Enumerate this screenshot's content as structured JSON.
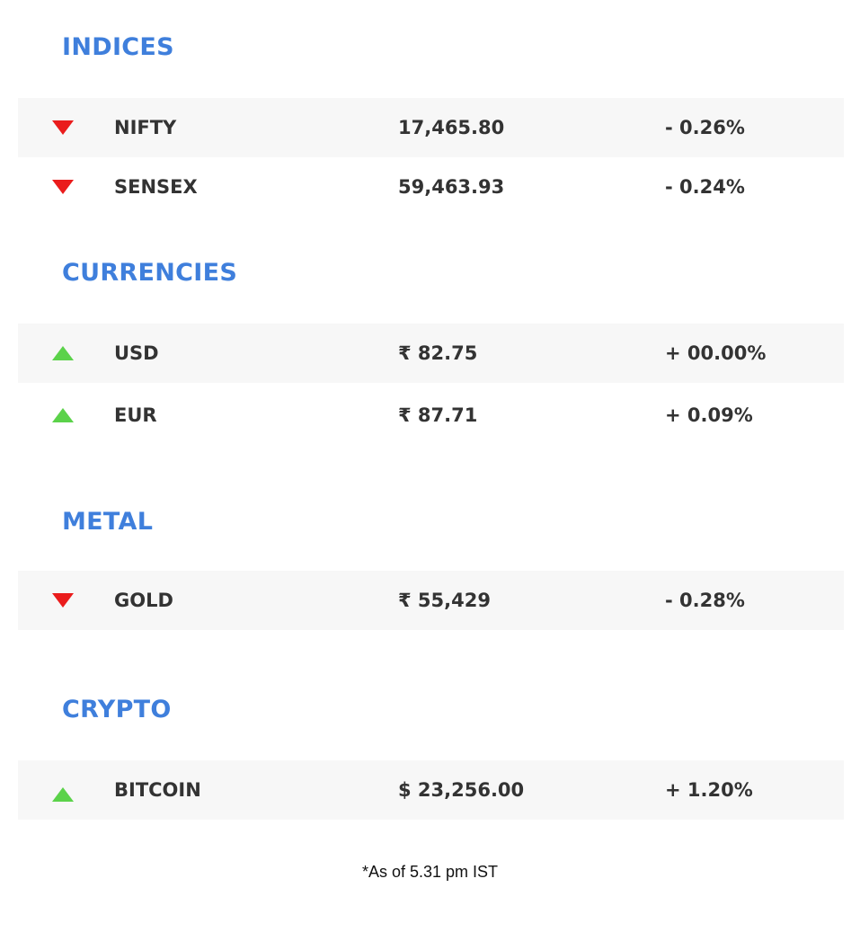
{
  "sections": {
    "indices": {
      "title": "INDICES",
      "rows": [
        {
          "name": "NIFTY",
          "value": "17,465.80",
          "change": "- 0.26%",
          "direction": "down"
        },
        {
          "name": "SENSEX",
          "value": "59,463.93",
          "change": "- 0.24%",
          "direction": "down"
        }
      ]
    },
    "currencies": {
      "title": "CURRENCIES",
      "rows": [
        {
          "name": "USD",
          "value": "₹ 82.75",
          "change": "+ 00.00%",
          "direction": "up"
        },
        {
          "name": "EUR",
          "value": "₹ 87.71",
          "change": "+ 0.09%",
          "direction": "up"
        }
      ]
    },
    "metal": {
      "title": "METAL",
      "rows": [
        {
          "name": "GOLD",
          "value": "₹ 55,429",
          "change": "- 0.28%",
          "direction": "down"
        }
      ]
    },
    "crypto": {
      "title": "CRYPTO",
      "rows": [
        {
          "name": "BITCOIN",
          "value": "$ 23,256.00",
          "change": "+ 1.20%",
          "direction": "up"
        }
      ]
    }
  },
  "icons": {
    "down": "triangle-down-icon",
    "up": "triangle-up-icon"
  },
  "colors": {
    "section_title": "#3f7fdc",
    "down_arrow": "#ea1c1c",
    "up_arrow": "#5bd24a",
    "row_shade": "#f7f7f7",
    "text": "#333333"
  },
  "footnote": "*As of 5.31 pm IST"
}
